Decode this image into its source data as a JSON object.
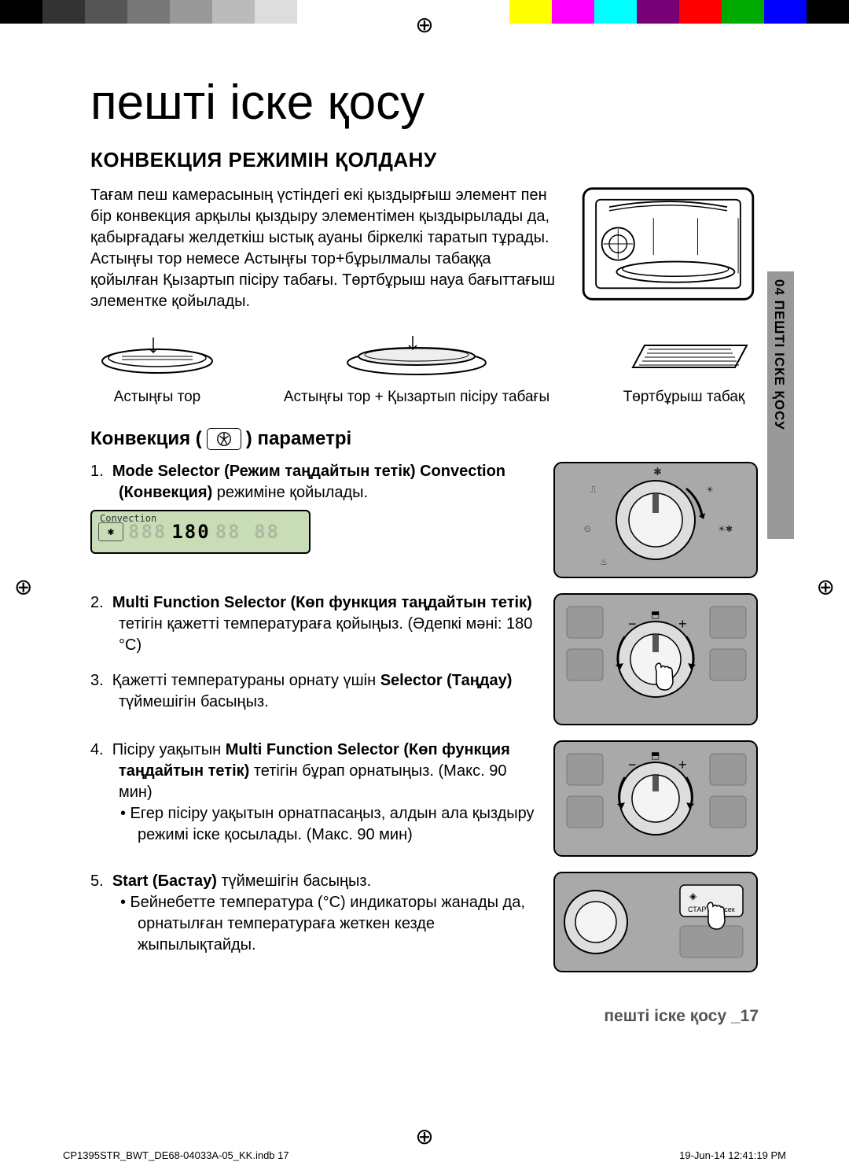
{
  "colorbar": [
    "#000000",
    "#333333",
    "#555555",
    "#777777",
    "#999999",
    "#bbbbbb",
    "#dddddd",
    "#ffffff",
    "#ffffff",
    "#ffffff",
    "#ffffff",
    "#ffffff",
    "#ffff00",
    "#ff00ff",
    "#00ffff",
    "#770077",
    "#ff0000",
    "#00aa00",
    "#0000ff",
    "#000000"
  ],
  "mainTitle": "пешті іске қосу",
  "sectionTitle": "КОНВЕКЦИЯ РЕЖИМІН ҚОЛДАНУ",
  "sideLabel": "04 ПЕШТІ ІСКЕ ҚОСУ",
  "introText": "Тағам пеш камерасының үстіндегі екі қыздырғыш элемент пен бір конвекция арқылы қыздыру элементімен қыздырылады да, қабырғадағы желдеткіш ыстық ауаны біркелкі таратып тұрады. Астыңғы тор немесе Астыңғы тор+бұрылмалы табаққа қойылған Қызартып пісіру табағы. Төртбұрыш науа бағыттағыш элементке қойылады.",
  "racks": {
    "r1": "Астыңғы тор",
    "r2": "Астыңғы тор + Қызартып пісіру табағы",
    "r3": "Төртбұрыш табақ"
  },
  "subTitle1": "Конвекция (",
  "subTitle2": ") параметрі",
  "lcd": {
    "mode": "Convection",
    "digits1": "888",
    "digitsBold": "180",
    "digits2": "88 88"
  },
  "steps": {
    "s1a": "1.",
    "s1b": "Mode Selector (Режим таңдайтын тетік) Convection (Конвекция)",
    "s1c": " режиміне қойылады.",
    "s2a": "2.",
    "s2b": "Multi Function Selector (Көп функция таңдайтын тетік)",
    "s2c": " тетігін қажетті температураға қойыңыз. (Әдепкі мәні: 180 °C)",
    "s3a": "3.",
    "s3b": " Қажетті температураны орнату үшін ",
    "s3c": "Selector (Таңдау)",
    "s3d": " түймешігін басыңыз.",
    "s4a": "4.",
    "s4b": " Пісіру уақытын ",
    "s4c": "Multi Function Selector (Көп функция таңдайтын тетік)",
    "s4d": " тетігін бұрап орнатыңыз. (Макс. 90 мин)",
    "s4bullet": "•  Егер пісіру уақытын орнатпасаңыз, алдын ала қыздыру режимі іске қосылады. (Макс. 90 мин)",
    "s5a": "5.",
    "s5b": "Start (Бастау)",
    "s5c": " түймешігін басыңыз.",
    "s5bullet": "•  Бейнебетте температура (°C) индикаторы жанады да, орнатылған температураға жеткен кезде жыпылықтайды."
  },
  "footerText": "пешті іске қосу _17",
  "printFooter": {
    "left": "CP1395STR_BWT_DE68-04033A-05_KK.indb   17",
    "right": "19-Jun-14   12:41:19 PM"
  }
}
